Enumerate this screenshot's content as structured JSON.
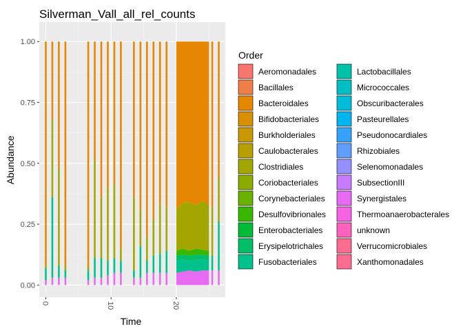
{
  "chart_data": {
    "type": "area",
    "title": "Silverman_Vall_all_rel_counts",
    "xlabel": "Time",
    "ylabel": "Abundance",
    "xlim": [
      -1,
      27.5
    ],
    "ylim": [
      -0.05,
      1.08
    ],
    "x_ticks": [
      0,
      10,
      20
    ],
    "y_ticks": [
      0.0,
      0.25,
      0.5,
      0.75,
      1.0
    ],
    "y_tick_labels": [
      "0.00",
      "0.25",
      "0.50",
      "0.75",
      "1.00"
    ],
    "legend_title": "Order",
    "legend_position": "right",
    "orders": [
      {
        "name": "Aeromonadales",
        "color": "#F8766D"
      },
      {
        "name": "Bacillales",
        "color": "#EF7F49"
      },
      {
        "name": "Bacteroidales",
        "color": "#E58700"
      },
      {
        "name": "Bifidobacteriales",
        "color": "#D89000"
      },
      {
        "name": "Burkholderiales",
        "color": "#C99800"
      },
      {
        "name": "Caulobacterales",
        "color": "#B79F00"
      },
      {
        "name": "Clostridiales",
        "color": "#A3A500"
      },
      {
        "name": "Coriobacteriales",
        "color": "#8BAB00"
      },
      {
        "name": "Corynebacteriales",
        "color": "#6BB100"
      },
      {
        "name": "Desulfovibrionales",
        "color": "#39B600"
      },
      {
        "name": "Enterobacteriales",
        "color": "#00BA38"
      },
      {
        "name": "Erysipelotrichales",
        "color": "#00BE67"
      },
      {
        "name": "Fusobacteriales",
        "color": "#00C08B"
      },
      {
        "name": "Lactobacillales",
        "color": "#00C1A9"
      },
      {
        "name": "Micrococcales",
        "color": "#00BFC4"
      },
      {
        "name": "Obscuribacterales",
        "color": "#00BCD8"
      },
      {
        "name": "Pasteurellales",
        "color": "#00B4F0"
      },
      {
        "name": "Pseudonocardiales",
        "color": "#35A2FF"
      },
      {
        "name": "Rhizobiales",
        "color": "#619CFF"
      },
      {
        "name": "Selenomonadales",
        "color": "#9590FF"
      },
      {
        "name": "SubsectionIII",
        "color": "#C77CFF"
      },
      {
        "name": "Synergistales",
        "color": "#E76BF3"
      },
      {
        "name": "Thermoanaerobacterales",
        "color": "#F564E3"
      },
      {
        "name": "unknown",
        "color": "#FF62BC"
      },
      {
        "name": "Verrucomicrobiales",
        "color": "#FF6C91"
      },
      {
        "name": "Xanthomonadales",
        "color": "#FF6C91"
      }
    ],
    "spikes": [
      {
        "x": 0,
        "bands": {
          "Synergistales": 0.02,
          "Fusobacteriales": 0.05,
          "Clostridiales": 0.01,
          "Bacteroidales": 0.92
        }
      },
      {
        "x": 1,
        "bands": {
          "Synergistales": 0.03,
          "Fusobacteriales": 0.33,
          "Clostridiales": 0.32,
          "Bacteroidales": 0.32
        }
      },
      {
        "x": 2,
        "bands": {
          "Synergistales": 0.03,
          "Fusobacteriales": 0.05,
          "Clostridiales": 0.4,
          "Bacteroidales": 0.52
        }
      },
      {
        "x": 3,
        "bands": {
          "Synergistales": 0.03,
          "Fusobacteriales": 0.03,
          "Clostridiales": 0.02,
          "Bacteroidales": 0.92
        }
      },
      {
        "x": 6.5,
        "bands": {
          "Synergistales": 0.02,
          "Fusobacteriales": 0.04,
          "Clostridiales": 0.02,
          "Bacteroidales": 0.92
        }
      },
      {
        "x": 7.5,
        "bands": {
          "Synergistales": 0.03,
          "Fusobacteriales": 0.08,
          "Clostridiales": 0.4,
          "Bacteroidales": 0.49
        }
      },
      {
        "x": 8.5,
        "bands": {
          "Synergistales": 0.03,
          "Fusobacteriales": 0.08,
          "Clostridiales": 0.25,
          "Bacteroidales": 0.64
        }
      },
      {
        "x": 9.5,
        "bands": {
          "Synergistales": 0.04,
          "Fusobacteriales": 0.06,
          "Clostridiales": 0.3,
          "Bacteroidales": 0.6
        }
      },
      {
        "x": 10.5,
        "bands": {
          "Synergistales": 0.05,
          "Fusobacteriales": 0.06,
          "Clostridiales": 0.3,
          "Bacteroidales": 0.59
        }
      },
      {
        "x": 11.5,
        "bands": {
          "Synergistales": 0.05,
          "Fusobacteriales": 0.05,
          "Clostridiales": 0.05,
          "Bacteroidales": 0.85
        }
      },
      {
        "x": 13.5,
        "bands": {
          "Synergistales": 0.03,
          "Fusobacteriales": 0.03,
          "Clostridiales": 0.3,
          "Bacteroidales": 0.64
        }
      },
      {
        "x": 14.5,
        "bands": {
          "Synergistales": 0.03,
          "Fusobacteriales": 0.13,
          "Clostridiales": 0.15,
          "Bacteroidales": 0.69
        }
      },
      {
        "x": 15.5,
        "bands": {
          "Synergistales": 0.05,
          "Fusobacteriales": 0.05,
          "Clostridiales": 0.1,
          "Bacteroidales": 0.8
        }
      },
      {
        "x": 16.5,
        "bands": {
          "Synergistales": 0.05,
          "Fusobacteriales": 0.07,
          "Clostridiales": 0.15,
          "Bacteroidales": 0.73
        }
      },
      {
        "x": 17.5,
        "bands": {
          "Synergistales": 0.05,
          "Fusobacteriales": 0.08,
          "Clostridiales": 0.2,
          "Bacteroidales": 0.67
        }
      },
      {
        "x": 18.5,
        "bands": {
          "Synergistales": 0.05,
          "Fusobacteriales": 0.09,
          "Clostridiales": 0.18,
          "Bacteroidales": 0.68
        }
      },
      {
        "x": 25.5,
        "bands": {
          "Synergistales": 0.06,
          "Fusobacteriales": 0.06,
          "Clostridiales": 0.2,
          "Bacteroidales": 0.68
        }
      },
      {
        "x": 26.5,
        "bands": {
          "Synergistales": 0.06,
          "Fusobacteriales": 0.2,
          "Clostridiales": 0.18,
          "Bacteroidales": 0.56
        }
      }
    ],
    "continuous_region": {
      "x": [
        20,
        21,
        22,
        23,
        24,
        25
      ],
      "bands": [
        {
          "name": "Synergistales",
          "values": [
            0.05,
            0.055,
            0.06,
            0.055,
            0.06,
            0.06
          ]
        },
        {
          "name": "Fusobacteriales",
          "values": [
            0.05,
            0.05,
            0.04,
            0.05,
            0.045,
            0.04
          ]
        },
        {
          "name": "Erysipelotrichales",
          "values": [
            0.02,
            0.02,
            0.02,
            0.02,
            0.02,
            0.02
          ]
        },
        {
          "name": "Desulfovibrionales",
          "values": [
            0.02,
            0.025,
            0.02,
            0.025,
            0.02,
            0.02
          ]
        },
        {
          "name": "Clostridiales",
          "values": [
            0.17,
            0.19,
            0.2,
            0.18,
            0.2,
            0.19
          ]
        },
        {
          "name": "Bacteroidales",
          "values": [
            0.69,
            0.66,
            0.66,
            0.67,
            0.655,
            0.67
          ]
        }
      ]
    }
  }
}
